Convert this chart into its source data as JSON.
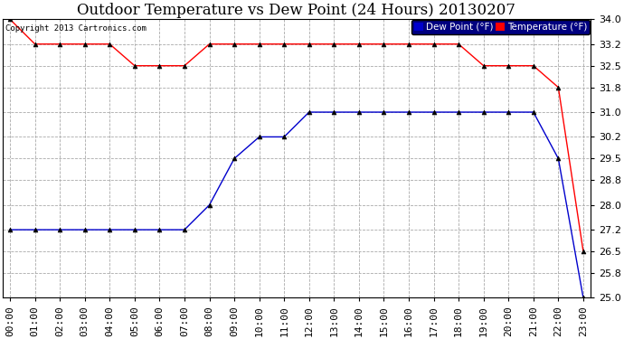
{
  "title": "Outdoor Temperature vs Dew Point (24 Hours) 20130207",
  "copyright": "Copyright 2013 Cartronics.com",
  "x_labels": [
    "00:00",
    "01:00",
    "02:00",
    "03:00",
    "04:00",
    "05:00",
    "06:00",
    "07:00",
    "08:00",
    "09:00",
    "10:00",
    "11:00",
    "12:00",
    "13:00",
    "14:00",
    "15:00",
    "16:00",
    "17:00",
    "18:00",
    "19:00",
    "20:00",
    "21:00",
    "22:00",
    "23:00"
  ],
  "temperature": [
    34.0,
    33.2,
    33.2,
    33.2,
    33.2,
    32.5,
    32.5,
    32.5,
    33.2,
    33.2,
    33.2,
    33.2,
    33.2,
    33.2,
    33.2,
    33.2,
    33.2,
    33.2,
    33.2,
    32.5,
    32.5,
    32.5,
    31.8,
    26.5
  ],
  "dew_point": [
    27.2,
    27.2,
    27.2,
    27.2,
    27.2,
    27.2,
    27.2,
    27.2,
    28.0,
    29.5,
    30.2,
    30.2,
    31.0,
    31.0,
    31.0,
    31.0,
    31.0,
    31.0,
    31.0,
    31.0,
    31.0,
    31.0,
    29.5,
    25.0
  ],
  "ylim": [
    25.0,
    34.0
  ],
  "yticks": [
    25.0,
    25.8,
    26.5,
    27.2,
    28.0,
    28.8,
    29.5,
    30.2,
    31.0,
    31.8,
    32.5,
    33.2,
    34.0
  ],
  "temp_color": "#ff0000",
  "dew_color": "#0000cc",
  "bg_color": "#ffffff",
  "plot_bg_color": "#ffffff",
  "grid_color": "#aaaaaa",
  "text_color": "#000000",
  "legend_dew_bg": "#0000cc",
  "legend_temp_bg": "#ff0000",
  "title_fontsize": 12,
  "tick_fontsize": 8,
  "marker": "^",
  "marker_size": 3.5,
  "marker_color": "#000000"
}
